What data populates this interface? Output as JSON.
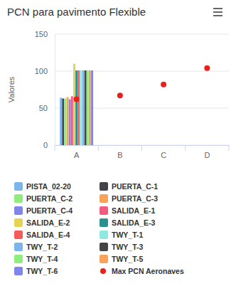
{
  "chart_data": {
    "type": "bar",
    "title": "PCN para pavimento Flexible",
    "y_label": "Valores",
    "categories": [
      "A",
      "B",
      "C",
      "D"
    ],
    "ylim": [
      0,
      150
    ],
    "yticks": [
      0,
      50,
      100,
      150
    ],
    "grid": true,
    "legend": "bottom",
    "series": [
      {
        "name": "PISTA_02-20",
        "color": "#7cb5ec",
        "values": [
          64,
          null,
          null,
          null
        ]
      },
      {
        "name": "PUERTA_C-1",
        "color": "#434348",
        "values": [
          63,
          null,
          null,
          null
        ]
      },
      {
        "name": "PUERTA_C-2",
        "color": "#90ed7d",
        "values": [
          63,
          null,
          null,
          null
        ]
      },
      {
        "name": "PUERTA_C-3",
        "color": "#f7a35c",
        "values": [
          65,
          null,
          null,
          null
        ]
      },
      {
        "name": "PUERTA_C-4",
        "color": "#8085e9",
        "values": [
          62,
          null,
          null,
          null
        ]
      },
      {
        "name": "SALIDA_E-1",
        "color": "#f15c80",
        "values": [
          66,
          null,
          null,
          null
        ]
      },
      {
        "name": "SALIDA_E-2",
        "color": "#e4d354",
        "values": [
          110,
          null,
          null,
          null
        ]
      },
      {
        "name": "SALIDA_E-3",
        "color": "#2b908f",
        "values": [
          101,
          null,
          null,
          null
        ]
      },
      {
        "name": "SALIDA_E-4",
        "color": "#f45b5b",
        "values": [
          101,
          null,
          null,
          null
        ]
      },
      {
        "name": "TWY_T-1",
        "color": "#91e8e1",
        "values": [
          101,
          null,
          null,
          null
        ]
      },
      {
        "name": "TWY_T-2",
        "color": "#7cb5ec",
        "values": [
          101,
          null,
          null,
          null
        ]
      },
      {
        "name": "TWY_T-3",
        "color": "#434348",
        "values": [
          101,
          null,
          null,
          null
        ]
      },
      {
        "name": "TWY_T-4",
        "color": "#90ed7d",
        "values": [
          101,
          null,
          null,
          null
        ]
      },
      {
        "name": "TWY_T-5",
        "color": "#f7a35c",
        "values": [
          101,
          null,
          null,
          null
        ]
      },
      {
        "name": "TWY_T-6",
        "color": "#8085e9",
        "values": [
          101,
          null,
          null,
          null
        ]
      },
      {
        "name": "Max PCN Aeronaves",
        "color": "#e8211d",
        "type": "scatter",
        "marker": "circle",
        "values": [
          62,
          67,
          82,
          104
        ]
      }
    ]
  }
}
